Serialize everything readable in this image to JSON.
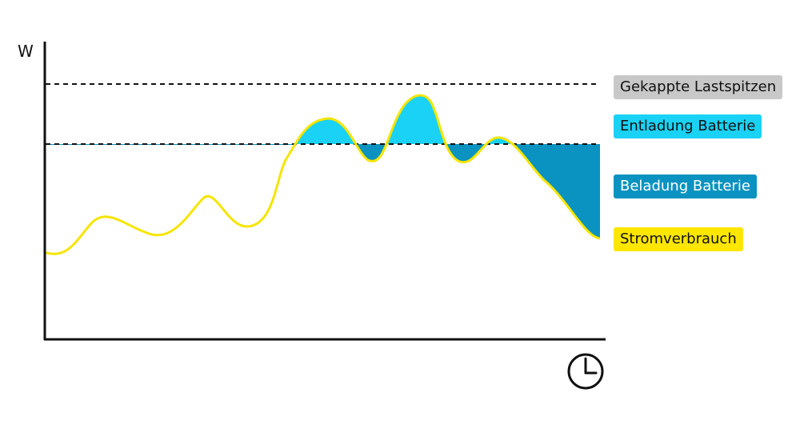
{
  "axis": {
    "y_label": "W",
    "x_icon": "clock-icon"
  },
  "legend": {
    "peak_cap": {
      "label": "Gekappte Lastspitzen",
      "color": "#c8c8c8"
    },
    "discharge": {
      "label": "Entladung Batterie",
      "color": "#1ad2f5"
    },
    "charge": {
      "label": "Beladung Batterie",
      "color": "#0a93c0"
    },
    "consumption": {
      "label": "Stromverbrauch",
      "color": "#ffe600"
    }
  },
  "colors": {
    "axis": "#111111",
    "dashed": "#111111",
    "curve": "#f5e500"
  }
}
